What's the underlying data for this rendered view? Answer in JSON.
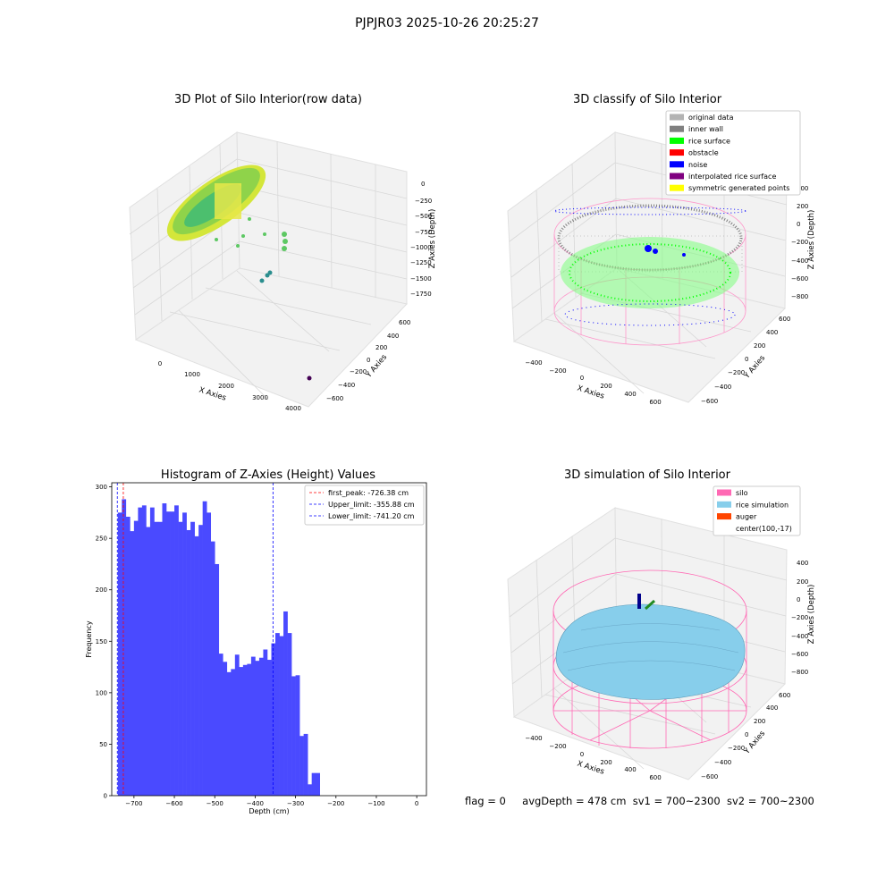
{
  "suptitle": "PJPJR03 2025-10-26 20:25:27",
  "footer": {
    "flag": "flag = 0",
    "avg": "avgDepth = 478 cm",
    "sv1": "sv1 = 700~2300",
    "sv2": "sv2 = 700~2300"
  },
  "panel1": {
    "title": "3D Plot of Silo Interior(row data)",
    "xlabel": "X Axies",
    "ylabel": "Y Axies",
    "zlabel": "Z Axies (Depth)",
    "xticks": [
      "0",
      "1000",
      "2000",
      "3000",
      "4000"
    ],
    "yticks": [
      "600",
      "400",
      "200",
      "0",
      "−200",
      "−400",
      "−600"
    ],
    "zticks": [
      "0",
      "−250",
      "−500",
      "−750",
      "−1000",
      "−1250",
      "−1500",
      "−1750"
    ]
  },
  "panel2": {
    "title": "3D classify of Silo Interior",
    "xlabel": "X Axies",
    "ylabel": "Y Axies",
    "zlabel": "Z Axies (Depth)",
    "xticks": [
      "−400",
      "−200",
      "0",
      "200",
      "400",
      "600"
    ],
    "yticks": [
      "600",
      "400",
      "200",
      "0",
      "−200",
      "−400",
      "−600"
    ],
    "zticks": [
      "400",
      "200",
      "0",
      "−200",
      "−400",
      "−600",
      "−800"
    ],
    "legend": [
      {
        "label": "original data",
        "color": "#b3b3b3"
      },
      {
        "label": "inner wall",
        "color": "#808080"
      },
      {
        "label": "rice surface",
        "color": "#00ff00"
      },
      {
        "label": "obstacle",
        "color": "#ff0000"
      },
      {
        "label": "noise",
        "color": "#0000ff"
      },
      {
        "label": "interpolated rice surface",
        "color": "#800080"
      },
      {
        "label": "symmetric generated points",
        "color": "#ffff00"
      }
    ]
  },
  "panel4": {
    "title": "3D simulation of Silo Interior",
    "xlabel": "X Axies",
    "ylabel": "Y Axies",
    "zlabel": "Z Axies (Depth)",
    "xticks": [
      "−400",
      "−200",
      "0",
      "200",
      "400",
      "600"
    ],
    "yticks": [
      "600",
      "400",
      "200",
      "0",
      "−200",
      "−400",
      "−600"
    ],
    "zticks": [
      "400",
      "200",
      "0",
      "−200",
      "−400",
      "−600",
      "−800"
    ],
    "legend": [
      {
        "label": "silo",
        "color": "#ff69b4"
      },
      {
        "label": "rice simulation",
        "color": "#87ceeb"
      },
      {
        "label": "auger",
        "color": "#ff4500"
      },
      {
        "label": "center(100,-17)",
        "color": ""
      }
    ]
  },
  "chart_data": {
    "type": "bar",
    "title": "Histogram of Z-Axies (Height) Values",
    "xlabel": "Depth (cm)",
    "ylabel": "Frequency",
    "xlim": [
      -755,
      24
    ],
    "ylim": [
      0,
      304
    ],
    "xticks": [
      -700,
      -600,
      -500,
      -400,
      -300,
      -200,
      -100,
      0
    ],
    "yticks": [
      0,
      50,
      100,
      150,
      200,
      250,
      300
    ],
    "bin_start": -740,
    "bin_width": 10,
    "values": [
      275,
      288,
      271,
      257,
      267,
      280,
      282,
      261,
      280,
      266,
      266,
      284,
      276,
      276,
      282,
      266,
      275,
      258,
      266,
      252,
      263,
      286,
      275,
      247,
      225,
      138,
      130,
      120,
      123,
      137,
      125,
      127,
      128,
      135,
      131,
      134,
      142,
      132,
      148,
      158,
      155,
      179,
      158,
      116,
      117,
      58,
      60,
      11,
      22,
      22
    ],
    "color": "#4a4aff",
    "vlines": [
      {
        "label": "first_peak: -726.38 cm",
        "x": -726.38,
        "color": "#ff0000"
      },
      {
        "label": "Upper_limit: -355.88 cm",
        "x": -355.88,
        "color": "#0000ff"
      },
      {
        "label": "Lower_limit: -741.20 cm",
        "x": -741.2,
        "color": "#0000ff"
      }
    ]
  }
}
